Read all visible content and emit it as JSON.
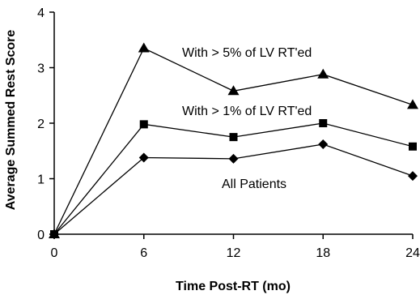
{
  "chart_data": {
    "type": "line",
    "title": "",
    "xlabel": "Time Post-RT (mo)",
    "ylabel": "Average Summed Rest Score",
    "x": [
      0,
      6,
      12,
      18,
      24
    ],
    "xlim": [
      0,
      24
    ],
    "ylim": [
      0,
      4
    ],
    "xticks": [
      "0",
      "6",
      "12",
      "18",
      "24"
    ],
    "yticks": [
      "0",
      "1",
      "2",
      "3",
      "4"
    ],
    "grid": false,
    "legend": "inline labels",
    "series": [
      {
        "name": "With > 5% of LV RT'ed",
        "marker": "triangle",
        "color": "#000000",
        "values": [
          0,
          3.35,
          2.58,
          2.88,
          2.33
        ]
      },
      {
        "name": "With > 1% of LV RT'ed",
        "marker": "square",
        "color": "#000000",
        "values": [
          0,
          1.98,
          1.75,
          2.0,
          1.58
        ]
      },
      {
        "name": "All Patients",
        "marker": "diamond",
        "color": "#000000",
        "values": [
          0,
          1.38,
          1.36,
          1.62,
          1.05
        ]
      }
    ]
  }
}
